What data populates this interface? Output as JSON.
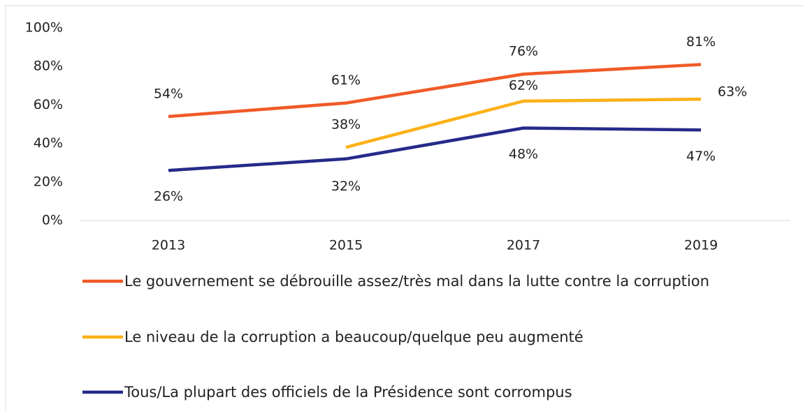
{
  "chart_data": {
    "type": "line",
    "categories": [
      "2013",
      "2015",
      "2017",
      "2019"
    ],
    "series": [
      {
        "name": "Le gouvernement se débrouille assez/très mal dans la lutte contre la corruption",
        "color": "#f05a28",
        "values": [
          54,
          61,
          76,
          81
        ],
        "value_labels": [
          "54%",
          "61%",
          "76%",
          "81%"
        ]
      },
      {
        "name": "Le niveau de la corruption a beaucoup/quelque peu augmenté",
        "color": "#fbb116",
        "values": [
          null,
          38,
          62,
          63
        ],
        "value_labels": [
          null,
          "38%",
          "62%",
          "63%"
        ]
      },
      {
        "name": "Tous/La plupart des officiels de la Présidence sont corrompus",
        "color": "#252a8a",
        "values": [
          26,
          32,
          48,
          47
        ],
        "value_labels": [
          "26%",
          "32%",
          "48%",
          "47%"
        ]
      }
    ],
    "ylim": [
      0,
      100
    ],
    "yticks": [
      {
        "value": 0,
        "label": "0%"
      },
      {
        "value": 20,
        "label": "20%"
      },
      {
        "value": 40,
        "label": "40%"
      },
      {
        "value": 60,
        "label": "60%"
      },
      {
        "value": 80,
        "label": "80%"
      },
      {
        "value": 100,
        "label": "100%"
      }
    ],
    "grid": false,
    "legend": "bottom"
  }
}
